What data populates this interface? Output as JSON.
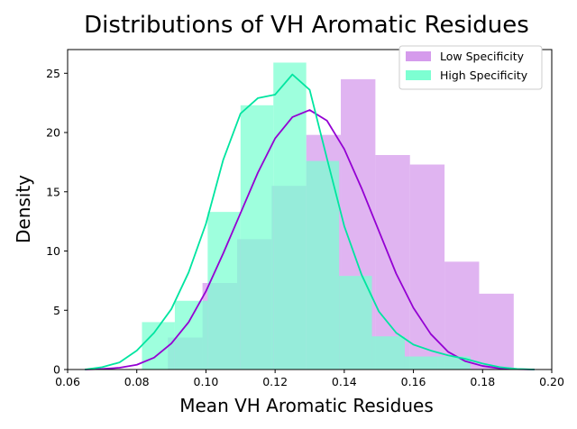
{
  "chart_data": {
    "type": "histogram-kde",
    "title": "Distributions of VH Aromatic Residues",
    "xlabel": "Mean VH Aromatic Residues",
    "ylabel": "Density",
    "xlim": [
      0.06,
      0.2
    ],
    "ylim": [
      0,
      27
    ],
    "xticks": [
      "0.06",
      "0.08",
      "0.10",
      "0.12",
      "0.14",
      "0.16",
      "0.18",
      "0.20"
    ],
    "yticks": [
      "0",
      "5",
      "10",
      "15",
      "20",
      "25"
    ],
    "legend_position": "top-right",
    "grid": false,
    "series": [
      {
        "name": "Low Specificity",
        "color": "#9400D3",
        "hist_color": "#D59BEC",
        "bins": [
          {
            "x0": 0.089,
            "x1": 0.099,
            "density": 2.7
          },
          {
            "x0": 0.099,
            "x1": 0.109,
            "density": 7.3
          },
          {
            "x0": 0.109,
            "x1": 0.119,
            "density": 11.0
          },
          {
            "x0": 0.119,
            "x1": 0.129,
            "density": 15.5
          },
          {
            "x0": 0.129,
            "x1": 0.139,
            "density": 19.8
          },
          {
            "x0": 0.139,
            "x1": 0.149,
            "density": 24.5
          },
          {
            "x0": 0.149,
            "x1": 0.159,
            "density": 18.1
          },
          {
            "x0": 0.159,
            "x1": 0.169,
            "density": 17.3
          },
          {
            "x0": 0.169,
            "x1": 0.179,
            "density": 9.1
          },
          {
            "x0": 0.179,
            "x1": 0.189,
            "density": 6.4
          }
        ],
        "kde": {
          "x": [
            0.065,
            0.07,
            0.075,
            0.08,
            0.085,
            0.09,
            0.095,
            0.1,
            0.105,
            0.11,
            0.115,
            0.12,
            0.125,
            0.13,
            0.135,
            0.14,
            0.145,
            0.15,
            0.155,
            0.16,
            0.165,
            0.17,
            0.175,
            0.18,
            0.185,
            0.19,
            0.195
          ],
          "y": [
            0.0,
            0.05,
            0.15,
            0.4,
            1.0,
            2.2,
            4.0,
            6.6,
            9.8,
            13.2,
            16.6,
            19.5,
            21.3,
            21.9,
            21.0,
            18.6,
            15.3,
            11.7,
            8.1,
            5.2,
            3.0,
            1.5,
            0.7,
            0.3,
            0.1,
            0.03,
            0.0
          ]
        }
      },
      {
        "name": "High Specificity",
        "color": "#00E5A0",
        "hist_color": "#7DFFD2",
        "bins": [
          {
            "x0": 0.0815,
            "x1": 0.091,
            "density": 4.0
          },
          {
            "x0": 0.091,
            "x1": 0.1005,
            "density": 5.8
          },
          {
            "x0": 0.1005,
            "x1": 0.11,
            "density": 13.3
          },
          {
            "x0": 0.11,
            "x1": 0.1195,
            "density": 22.3
          },
          {
            "x0": 0.1195,
            "x1": 0.129,
            "density": 25.9
          },
          {
            "x0": 0.129,
            "x1": 0.1385,
            "density": 17.6
          },
          {
            "x0": 0.1385,
            "x1": 0.148,
            "density": 7.9
          },
          {
            "x0": 0.148,
            "x1": 0.1575,
            "density": 2.8
          },
          {
            "x0": 0.1575,
            "x1": 0.167,
            "density": 1.1
          },
          {
            "x0": 0.167,
            "x1": 0.1765,
            "density": 1.1
          }
        ],
        "kde": {
          "x": [
            0.065,
            0.07,
            0.075,
            0.08,
            0.085,
            0.09,
            0.095,
            0.1,
            0.105,
            0.11,
            0.115,
            0.12,
            0.125,
            0.13,
            0.135,
            0.14,
            0.145,
            0.15,
            0.155,
            0.16,
            0.165,
            0.17,
            0.175,
            0.18,
            0.185,
            0.19,
            0.195
          ],
          "y": [
            0.0,
            0.2,
            0.6,
            1.6,
            3.1,
            5.1,
            8.2,
            12.3,
            17.7,
            21.6,
            22.9,
            23.2,
            24.9,
            23.6,
            17.8,
            12.1,
            8.0,
            4.9,
            3.1,
            2.1,
            1.6,
            1.2,
            0.9,
            0.5,
            0.2,
            0.05,
            0.0
          ]
        }
      }
    ]
  }
}
